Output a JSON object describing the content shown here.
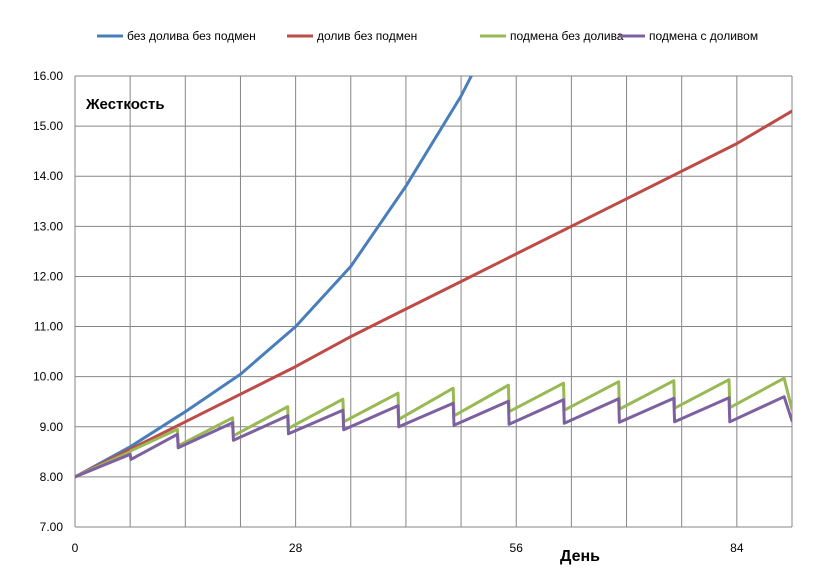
{
  "chart_data": {
    "type": "line",
    "title": "",
    "ylabel": "Жесткость",
    "xlabel": "День",
    "xlim": [
      0,
      91
    ],
    "ylim": [
      7.0,
      16.0
    ],
    "x_ticks": [
      0,
      28,
      56,
      84
    ],
    "y_ticks": [
      7.0,
      8.0,
      9.0,
      10.0,
      11.0,
      12.0,
      13.0,
      14.0,
      15.0,
      16.0
    ],
    "y_tick_labels": [
      "7.00",
      "8.00",
      "9.00",
      "10.00",
      "11.00",
      "12.00",
      "13.00",
      "14.00",
      "15.00",
      "16.00"
    ],
    "x_tick_labels": [
      "0",
      "28",
      "56",
      "84"
    ],
    "grid": "vertical lines every 7 days, horizontal at each y tick",
    "legend_position": "top",
    "series": [
      {
        "name": "без долива без подмен",
        "color": "#4a7ebb",
        "x": [
          0,
          7,
          14,
          21,
          28,
          35,
          42,
          49,
          50.3
        ],
        "y": [
          8.0,
          8.6,
          9.3,
          10.05,
          11.0,
          12.2,
          13.8,
          15.6,
          16.0
        ]
      },
      {
        "name": "долив без подмен",
        "color": "#be4b48",
        "x": [
          0,
          7,
          14,
          21,
          28,
          35,
          42,
          49,
          56,
          63,
          70,
          77,
          84,
          91
        ],
        "y": [
          8.0,
          8.55,
          9.1,
          9.65,
          10.2,
          10.8,
          11.35,
          11.9,
          12.45,
          13.0,
          13.55,
          14.1,
          14.65,
          15.3
        ]
      },
      {
        "name": "подмена без долива",
        "color": "#98b954",
        "x": [
          0,
          7,
          7.1,
          13,
          13.1,
          20,
          20.1,
          27,
          27.1,
          34,
          34.1,
          41,
          41.1,
          48,
          48.1,
          55,
          55.1,
          62,
          62.1,
          69,
          69.1,
          76,
          76.1,
          83,
          83.1,
          90,
          91
        ],
        "y": [
          8.0,
          8.5,
          8.52,
          8.95,
          8.62,
          9.18,
          8.82,
          9.4,
          8.97,
          9.55,
          9.1,
          9.67,
          9.15,
          9.77,
          9.22,
          9.83,
          9.3,
          9.87,
          9.33,
          9.9,
          9.35,
          9.92,
          9.37,
          9.94,
          9.38,
          9.97,
          9.35
        ]
      },
      {
        "name": "подмена с доливом",
        "color": "#7d60a0",
        "x": [
          0,
          7,
          7.1,
          13,
          13.1,
          20,
          20.1,
          27,
          27.1,
          34,
          34.1,
          41,
          41.1,
          48,
          48.1,
          55,
          55.1,
          62,
          62.1,
          69,
          69.1,
          76,
          76.1,
          83,
          83.1,
          90,
          91
        ],
        "y": [
          8.0,
          8.45,
          8.35,
          8.85,
          8.58,
          9.08,
          8.73,
          9.22,
          8.86,
          9.33,
          8.94,
          9.42,
          9.0,
          9.47,
          9.03,
          9.51,
          9.05,
          9.54,
          9.07,
          9.56,
          9.09,
          9.57,
          9.1,
          9.58,
          9.1,
          9.6,
          9.12
        ]
      }
    ]
  }
}
